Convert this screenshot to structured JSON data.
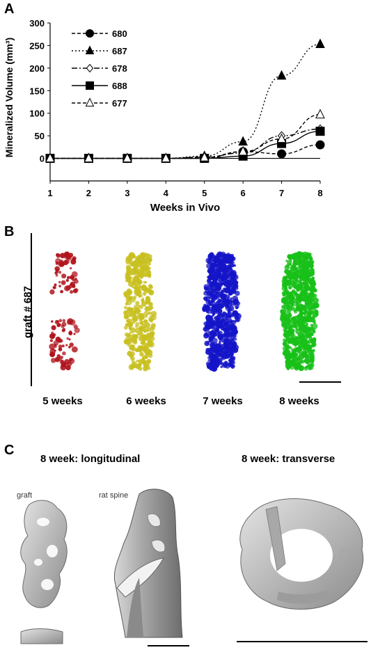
{
  "panels": {
    "a": "A",
    "b": "B",
    "c": "C"
  },
  "chart_data": {
    "type": "line",
    "xlabel": "Weeks in Vivo",
    "ylabel": "Mineralized Volume (mm³)",
    "x": [
      1,
      2,
      3,
      4,
      5,
      6,
      7,
      8
    ],
    "xlim": [
      1,
      8
    ],
    "ylim": [
      -50,
      300
    ],
    "yticks": [
      0,
      50,
      100,
      150,
      200,
      250,
      300
    ],
    "grid": false,
    "legend_position": "top-left",
    "series": [
      {
        "name": "680",
        "marker": "circle-filled",
        "dash": "dashed",
        "values": [
          0,
          0,
          0,
          0,
          0,
          15,
          10,
          30
        ]
      },
      {
        "name": "687",
        "marker": "triangle-filled",
        "dash": "dotted",
        "values": [
          0,
          0,
          0,
          0,
          5,
          37,
          183,
          253
        ]
      },
      {
        "name": "678",
        "marker": "diamond-open",
        "dash": "dashdot",
        "values": [
          0,
          0,
          0,
          0,
          3,
          12,
          50,
          65
        ]
      },
      {
        "name": "688",
        "marker": "square-filled",
        "dash": "solid",
        "values": [
          0,
          0,
          0,
          0,
          0,
          5,
          33,
          60
        ]
      },
      {
        "name": "677",
        "marker": "triangle-open",
        "dash": "dashed",
        "values": [
          0,
          0,
          0,
          0,
          2,
          15,
          43,
          97
        ]
      }
    ]
  },
  "panel_b": {
    "row_label": "graft # 687",
    "weeks": [
      "5 weeks",
      "6 weeks",
      "7 weeks",
      "8 weeks"
    ],
    "colors": [
      "#b0141c",
      "#c8c020",
      "#1414c8",
      "#18c018"
    ]
  },
  "panel_c": {
    "longitudinal_title": "8 week: longitudinal",
    "transverse_title": "8 week: transverse",
    "graft_label": "graft",
    "spine_label": "rat spine"
  }
}
